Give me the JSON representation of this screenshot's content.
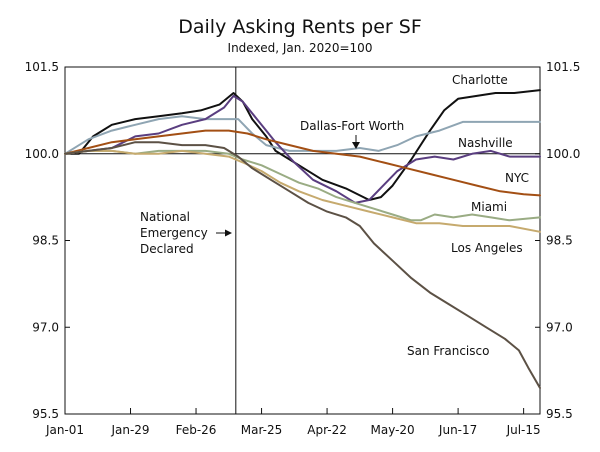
{
  "chart_data": {
    "type": "line",
    "title": "Daily Asking Rents per SF",
    "subtitle": "Indexed, Jan. 2020=100",
    "xlabel": "",
    "ylabel": "",
    "x_domain": [
      0,
      203
    ],
    "ylim": [
      95.5,
      101.5
    ],
    "yticks": [
      95.5,
      97.0,
      98.5,
      100.0,
      101.5
    ],
    "ytick_labels": [
      "95.5",
      "97.0",
      "98.5",
      "100.0",
      "101.5"
    ],
    "xticks": [
      0,
      28,
      56,
      84,
      112,
      140,
      168,
      196
    ],
    "xtick_labels": [
      "Jan-01",
      "Jan-29",
      "Feb-26",
      "Mar-25",
      "Apr-22",
      "May-20",
      "Jun-17",
      "Jul-15"
    ],
    "reference_line": {
      "y": 100.0
    },
    "event": {
      "x": 73,
      "label_lines": [
        "National",
        "Emergency",
        "Declared"
      ]
    },
    "series": [
      {
        "name": "Charlotte",
        "color": "#111111",
        "points": [
          [
            0,
            100.0
          ],
          [
            6,
            100.0
          ],
          [
            12,
            100.3
          ],
          [
            20,
            100.5
          ],
          [
            30,
            100.6
          ],
          [
            40,
            100.65
          ],
          [
            50,
            100.7
          ],
          [
            58,
            100.75
          ],
          [
            66,
            100.85
          ],
          [
            72,
            101.05
          ],
          [
            76,
            100.9
          ],
          [
            80,
            100.6
          ],
          [
            86,
            100.3
          ],
          [
            90,
            100.05
          ],
          [
            100,
            99.8
          ],
          [
            110,
            99.55
          ],
          [
            120,
            99.4
          ],
          [
            130,
            99.2
          ],
          [
            135,
            99.25
          ],
          [
            140,
            99.45
          ],
          [
            148,
            99.9
          ],
          [
            156,
            100.4
          ],
          [
            162,
            100.75
          ],
          [
            168,
            100.95
          ],
          [
            176,
            101.0
          ],
          [
            184,
            101.05
          ],
          [
            192,
            101.05
          ],
          [
            203,
            101.1
          ]
        ],
        "label": "Charlotte"
      },
      {
        "name": "Dallas-Fort Worth",
        "color": "#8fa5b3",
        "points": [
          [
            0,
            100.0
          ],
          [
            10,
            100.25
          ],
          [
            20,
            100.4
          ],
          [
            30,
            100.5
          ],
          [
            40,
            100.6
          ],
          [
            50,
            100.65
          ],
          [
            60,
            100.6
          ],
          [
            70,
            100.6
          ],
          [
            74,
            100.6
          ],
          [
            80,
            100.35
          ],
          [
            86,
            100.15
          ],
          [
            96,
            100.05
          ],
          [
            106,
            100.05
          ],
          [
            116,
            100.05
          ],
          [
            126,
            100.1
          ],
          [
            134,
            100.05
          ],
          [
            142,
            100.15
          ],
          [
            150,
            100.3
          ],
          [
            160,
            100.4
          ],
          [
            170,
            100.55
          ],
          [
            180,
            100.55
          ],
          [
            190,
            100.55
          ],
          [
            203,
            100.55
          ]
        ],
        "label": "Dallas-Fort Worth"
      },
      {
        "name": "Nashville",
        "color": "#5a3e80",
        "points": [
          [
            0,
            100.0
          ],
          [
            10,
            100.05
          ],
          [
            20,
            100.1
          ],
          [
            30,
            100.3
          ],
          [
            40,
            100.35
          ],
          [
            50,
            100.5
          ],
          [
            60,
            100.6
          ],
          [
            68,
            100.8
          ],
          [
            72,
            101.0
          ],
          [
            76,
            100.9
          ],
          [
            82,
            100.6
          ],
          [
            90,
            100.2
          ],
          [
            98,
            99.85
          ],
          [
            106,
            99.55
          ],
          [
            116,
            99.35
          ],
          [
            124,
            99.15
          ],
          [
            130,
            99.2
          ],
          [
            136,
            99.45
          ],
          [
            142,
            99.7
          ],
          [
            150,
            99.9
          ],
          [
            158,
            99.95
          ],
          [
            166,
            99.9
          ],
          [
            174,
            100.0
          ],
          [
            182,
            100.05
          ],
          [
            190,
            99.95
          ],
          [
            203,
            99.95
          ]
        ],
        "label": "Nashville"
      },
      {
        "name": "NYC",
        "color": "#a34f14",
        "points": [
          [
            0,
            100.0
          ],
          [
            10,
            100.1
          ],
          [
            20,
            100.2
          ],
          [
            30,
            100.25
          ],
          [
            40,
            100.3
          ],
          [
            50,
            100.35
          ],
          [
            60,
            100.4
          ],
          [
            70,
            100.4
          ],
          [
            78,
            100.35
          ],
          [
            86,
            100.25
          ],
          [
            96,
            100.15
          ],
          [
            106,
            100.05
          ],
          [
            116,
            100.0
          ],
          [
            126,
            99.95
          ],
          [
            136,
            99.85
          ],
          [
            146,
            99.75
          ],
          [
            156,
            99.65
          ],
          [
            166,
            99.55
          ],
          [
            176,
            99.45
          ],
          [
            186,
            99.35
          ],
          [
            196,
            99.3
          ],
          [
            203,
            99.28
          ]
        ],
        "label": "NYC"
      },
      {
        "name": "Miami",
        "color": "#9aac84",
        "points": [
          [
            0,
            100.0
          ],
          [
            10,
            100.05
          ],
          [
            20,
            100.05
          ],
          [
            30,
            100.0
          ],
          [
            40,
            100.05
          ],
          [
            50,
            100.05
          ],
          [
            60,
            100.05
          ],
          [
            70,
            100.0
          ],
          [
            76,
            99.9
          ],
          [
            84,
            99.8
          ],
          [
            92,
            99.65
          ],
          [
            100,
            99.5
          ],
          [
            108,
            99.4
          ],
          [
            116,
            99.25
          ],
          [
            124,
            99.15
          ],
          [
            132,
            99.05
          ],
          [
            140,
            98.95
          ],
          [
            148,
            98.85
          ],
          [
            152,
            98.85
          ],
          [
            158,
            98.95
          ],
          [
            166,
            98.9
          ],
          [
            174,
            98.95
          ],
          [
            182,
            98.9
          ],
          [
            190,
            98.85
          ],
          [
            203,
            98.9
          ]
        ],
        "label": "Miami"
      },
      {
        "name": "Los Angeles",
        "color": "#c6aa6e",
        "points": [
          [
            0,
            100.0
          ],
          [
            10,
            100.05
          ],
          [
            20,
            100.05
          ],
          [
            30,
            100.0
          ],
          [
            40,
            100.0
          ],
          [
            50,
            100.05
          ],
          [
            60,
            100.0
          ],
          [
            70,
            99.95
          ],
          [
            76,
            99.85
          ],
          [
            84,
            99.7
          ],
          [
            92,
            99.5
          ],
          [
            100,
            99.35
          ],
          [
            110,
            99.2
          ],
          [
            120,
            99.1
          ],
          [
            130,
            99.0
          ],
          [
            140,
            98.9
          ],
          [
            150,
            98.8
          ],
          [
            160,
            98.8
          ],
          [
            170,
            98.75
          ],
          [
            180,
            98.75
          ],
          [
            190,
            98.75
          ],
          [
            203,
            98.65
          ]
        ],
        "label": "Los Angeles"
      },
      {
        "name": "San Francisco",
        "color": "#5c5145",
        "points": [
          [
            0,
            100.0
          ],
          [
            10,
            100.05
          ],
          [
            20,
            100.1
          ],
          [
            30,
            100.2
          ],
          [
            40,
            100.2
          ],
          [
            50,
            100.15
          ],
          [
            60,
            100.15
          ],
          [
            68,
            100.1
          ],
          [
            74,
            99.95
          ],
          [
            80,
            99.75
          ],
          [
            88,
            99.55
          ],
          [
            96,
            99.35
          ],
          [
            104,
            99.15
          ],
          [
            112,
            99.0
          ],
          [
            120,
            98.9
          ],
          [
            126,
            98.75
          ],
          [
            132,
            98.45
          ],
          [
            140,
            98.15
          ],
          [
            148,
            97.85
          ],
          [
            156,
            97.6
          ],
          [
            164,
            97.4
          ],
          [
            172,
            97.2
          ],
          [
            180,
            97.0
          ],
          [
            188,
            96.8
          ],
          [
            194,
            96.6
          ],
          [
            198,
            96.3
          ],
          [
            203,
            95.95
          ]
        ],
        "label": "San Francisco"
      }
    ]
  }
}
